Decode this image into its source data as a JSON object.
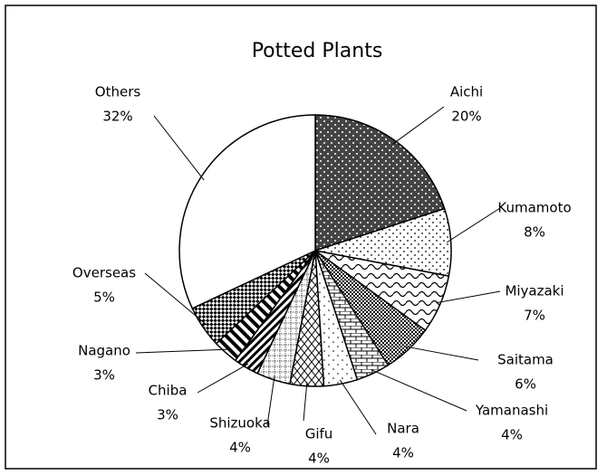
{
  "chart_data": {
    "type": "pie",
    "title": "Potted Plants",
    "categories": [
      "Aichi",
      "Kumamoto",
      "Miyazaki",
      "Saitama",
      "Yamanashi",
      "Nara",
      "Gifu",
      "Shizuoka",
      "Chiba",
      "Nagano",
      "Overseas",
      "Others"
    ],
    "values": [
      20,
      8,
      7,
      6,
      4,
      4,
      4,
      4,
      3,
      3,
      5,
      32
    ],
    "value_labels": [
      "20%",
      "8%",
      "7%",
      "6%",
      "4%",
      "4%",
      "4%",
      "4%",
      "3%",
      "3%",
      "5%",
      "32%"
    ]
  }
}
